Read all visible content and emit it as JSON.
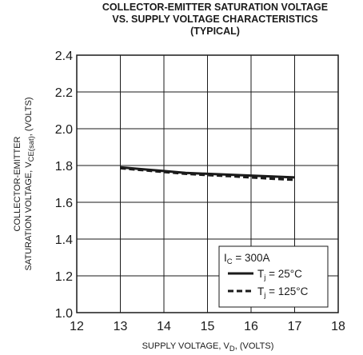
{
  "chart_data": {
    "type": "line",
    "title_lines": [
      "COLLECTOR-EMITTER SATURATION VOLTAGE",
      "VS. SUPPLY VOLTAGE CHARACTERISTICS",
      "(TYPICAL)"
    ],
    "xlabel": {
      "main": "SUPPLY VOLTAGE, V",
      "sub": "D",
      "suffix": ", (VOLTS)"
    },
    "ylabel": {
      "line1": "COLLECTOR-EMITTER",
      "line2_main": "SATURATION VOLTAGE, V",
      "line2_sub": "CE(sat)",
      "line2_suffix": ", (VOLTS)"
    },
    "xlim": [
      12,
      18
    ],
    "ylim": [
      1.0,
      2.4
    ],
    "x_ticks": [
      "12",
      "13",
      "14",
      "15",
      "16",
      "17",
      "18"
    ],
    "y_ticks": [
      "1.0",
      "1.2",
      "1.4",
      "1.6",
      "1.8",
      "2.0",
      "2.2",
      "2.4"
    ],
    "x_ticks_values": [
      12,
      13,
      14,
      15,
      16,
      17,
      18
    ],
    "y_ticks_values": [
      1.0,
      1.2,
      1.4,
      1.6,
      1.8,
      2.0,
      2.2,
      2.4
    ],
    "grid": true,
    "legend_position": "bottom-right",
    "legend": {
      "condition_main": "I",
      "condition_sub": "C",
      "condition_suffix": " = 300A",
      "series": [
        {
          "name": "T",
          "sub": "j",
          "suffix": " = 25°C"
        },
        {
          "name": "T",
          "sub": "j",
          "suffix": " = 125°C"
        }
      ]
    },
    "series": [
      {
        "style": "solid",
        "x": [
          13.0,
          13.5,
          14.0,
          14.5,
          15.0,
          15.5,
          16.0,
          16.5,
          17.0
        ],
        "values": [
          1.79,
          1.78,
          1.77,
          1.76,
          1.755,
          1.75,
          1.745,
          1.74,
          1.735
        ]
      },
      {
        "style": "dashed",
        "x": [
          13.0,
          13.5,
          14.0,
          14.5,
          15.0,
          15.5,
          16.0,
          16.5,
          17.0
        ],
        "values": [
          1.785,
          1.775,
          1.765,
          1.755,
          1.748,
          1.742,
          1.735,
          1.728,
          1.722
        ]
      }
    ]
  }
}
